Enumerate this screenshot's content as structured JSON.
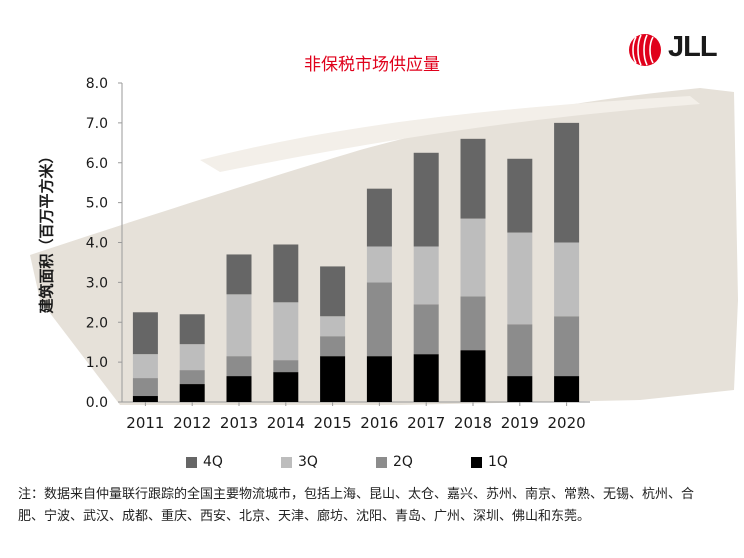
{
  "chart_data": {
    "type": "bar",
    "stacked": true,
    "title": "非保税市场供应量",
    "ylabel": "建筑面积（百万平方米）",
    "xlabel": "",
    "ylim": [
      0,
      8
    ],
    "yticks": [
      "0.0",
      "1.0",
      "2.0",
      "3.0",
      "4.0",
      "5.0",
      "6.0",
      "7.0",
      "8.0"
    ],
    "grid": false,
    "legend_position": "bottom",
    "categories": [
      "2011",
      "2012",
      "2013",
      "2014",
      "2015",
      "2016",
      "2017",
      "2018",
      "2019",
      "2020"
    ],
    "series": [
      {
        "name": "1Q",
        "color": "#000000",
        "values": [
          0.15,
          0.45,
          0.65,
          0.75,
          1.15,
          1.15,
          1.2,
          1.3,
          0.65,
          0.65
        ]
      },
      {
        "name": "2Q",
        "color": "#8c8c8c",
        "values": [
          0.45,
          0.35,
          0.5,
          0.3,
          0.5,
          1.85,
          1.25,
          1.35,
          1.3,
          1.5
        ]
      },
      {
        "name": "3Q",
        "color": "#bdbdbd",
        "values": [
          0.6,
          0.65,
          1.55,
          1.45,
          0.5,
          0.9,
          1.45,
          1.95,
          2.3,
          1.85
        ]
      },
      {
        "name": "4Q",
        "color": "#666666",
        "values": [
          1.05,
          0.75,
          1.0,
          1.45,
          1.25,
          1.45,
          2.35,
          2.0,
          1.85,
          3.0
        ]
      }
    ],
    "legend_order": [
      "4Q",
      "3Q",
      "2Q",
      "1Q"
    ]
  },
  "logo": {
    "text": "JLL",
    "color": "#e0001b"
  },
  "note": "注：数据来自仲量联行跟踪的全国主要物流城市，包括上海、昆山、太仓、嘉兴、苏州、南京、常熟、无锡、杭州、合肥、宁波、武汉、成都、重庆、西安、北京、天津、廊坊、沈阳、青岛、广州、深圳、佛山和东莞。"
}
